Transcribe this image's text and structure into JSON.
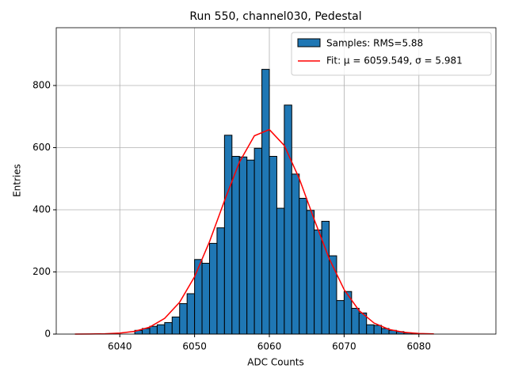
{
  "chart_data": {
    "type": "histogram",
    "title": "Run 550, channel030, Pedestal",
    "xlabel": "ADC Counts",
    "ylabel": "Entries",
    "hist_name": "Samples: RMS=5.88",
    "bar_color": "#1f77b4",
    "edge_color": "#000000",
    "bins": [
      6042,
      6043,
      6044,
      6045,
      6046,
      6047,
      6048,
      6049,
      6050,
      6051,
      6052,
      6053,
      6054,
      6055,
      6056,
      6057,
      6058,
      6059,
      6060,
      6061,
      6062,
      6063,
      6064,
      6065,
      6066,
      6067,
      6068,
      6069,
      6070,
      6071,
      6072,
      6073,
      6074,
      6075,
      6076,
      6077,
      6078,
      6079,
      6080
    ],
    "counts": [
      12,
      18,
      25,
      30,
      37,
      55,
      98,
      130,
      240,
      228,
      292,
      342,
      640,
      572,
      570,
      560,
      598,
      852,
      572,
      405,
      737,
      515,
      437,
      398,
      335,
      363,
      252,
      108,
      137,
      83,
      68,
      30,
      28,
      18,
      12,
      8,
      4,
      2
    ],
    "series": [
      {
        "name": "Fit: μ = 6059.549, σ = 5.981",
        "color": "#ff0000",
        "x": [
          6034,
          6036,
          6038,
          6040,
          6042,
          6044,
          6046,
          6048,
          6050,
          6052,
          6054,
          6056,
          6058,
          6060,
          6062,
          6064,
          6066,
          6068,
          6070,
          6072,
          6074,
          6076,
          6078,
          6080,
          6082
        ],
        "values": [
          0.07,
          0.28,
          1.0,
          3.2,
          8.9,
          22.5,
          50.7,
          102.4,
          184.6,
          297.6,
          429.2,
          553.5,
          638.2,
          658.1,
          606.8,
          500.4,
          368.9,
          243.2,
          143.3,
          75.6,
          35.6,
          15.0,
          5.7,
          1.9,
          0.6
        ]
      }
    ],
    "xlim": [
      6031.5,
      6090.3
    ],
    "ylim": [
      0,
      986
    ],
    "xticks": [
      6040,
      6050,
      6060,
      6070,
      6080
    ],
    "yticks": [
      0,
      200,
      400,
      600,
      800
    ],
    "grid": true,
    "legend": "upper right"
  }
}
